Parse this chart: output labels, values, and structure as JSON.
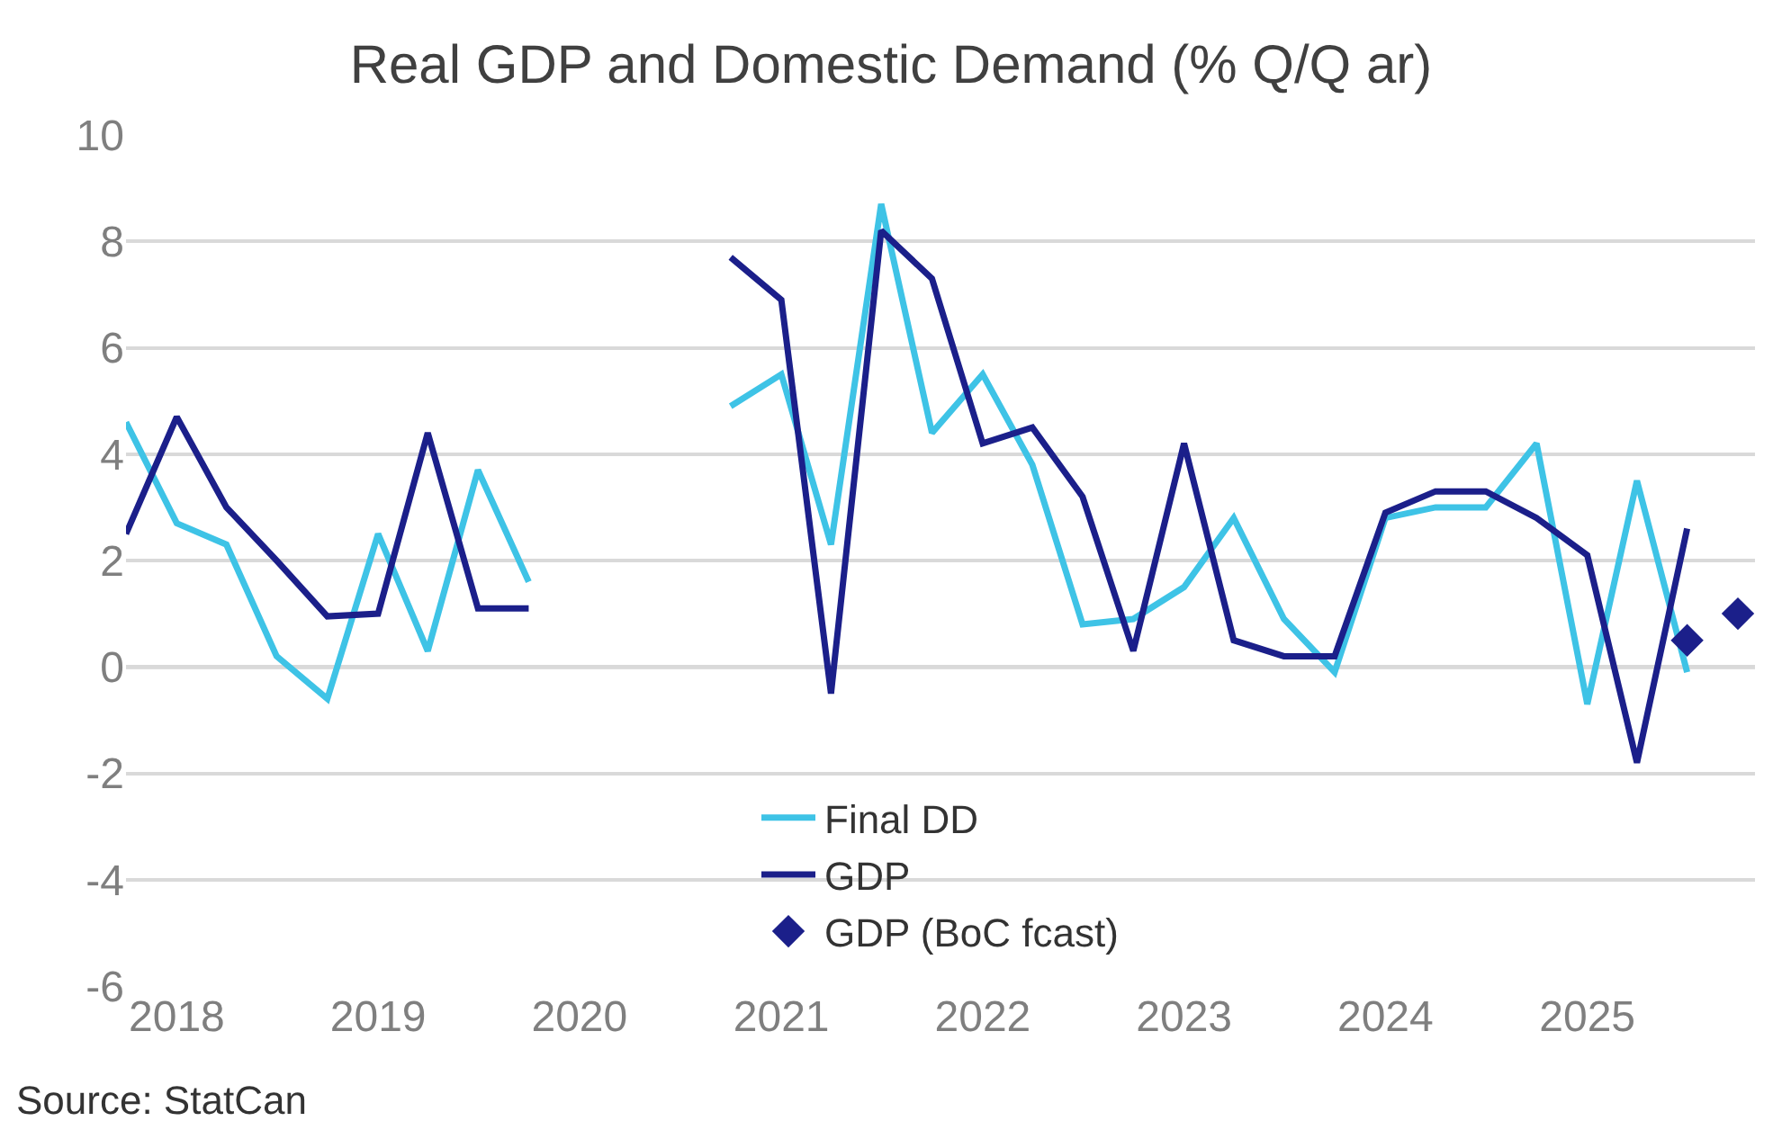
{
  "chart_data": {
    "type": "line",
    "title": "Real GDP and Domestic Demand (% Q/Q ar)",
    "x": [
      "2017-10",
      "2018-01",
      "2018-04",
      "2018-07",
      "2018-10",
      "2019-01",
      "2019-04",
      "2019-07",
      "2019-10",
      "2020-01",
      "2020-04",
      "2020-07",
      "2020-10",
      "2021-01",
      "2021-04",
      "2021-07",
      "2021-10",
      "2022-01",
      "2022-04",
      "2022-07",
      "2022-10",
      "2023-01",
      "2023-04",
      "2023-07",
      "2023-10",
      "2024-01",
      "2024-04",
      "2024-07",
      "2024-10",
      "2025-01",
      "2025-04",
      "2025-07"
    ],
    "series": [
      {
        "name": "Final DD",
        "color": "#3ec3e6",
        "values": [
          4.6,
          2.7,
          2.3,
          0.2,
          -0.6,
          2.5,
          0.3,
          3.7,
          1.6,
          null,
          null,
          null,
          4.9,
          5.5,
          2.3,
          8.7,
          4.4,
          5.5,
          3.8,
          0.8,
          0.9,
          1.5,
          2.8,
          0.9,
          -0.1,
          2.8,
          3.0,
          3.0,
          4.2,
          -0.7,
          3.5,
          -0.1
        ]
      },
      {
        "name": "GDP",
        "color": "#1b1f8a",
        "values": [
          2.5,
          4.7,
          3.0,
          2.0,
          0.95,
          1.0,
          4.4,
          1.1,
          1.1,
          null,
          null,
          null,
          7.7,
          6.9,
          -0.5,
          8.2,
          7.3,
          4.2,
          4.5,
          3.2,
          0.3,
          4.2,
          0.5,
          0.2,
          0.2,
          2.9,
          3.3,
          3.3,
          2.8,
          2.1,
          -1.8,
          2.6
        ]
      },
      {
        "name": "GDP (BoC fcast)",
        "type": "scatter",
        "marker": "diamond",
        "color": "#1b1f8a",
        "x": [
          "2025-07",
          "2025-10"
        ],
        "values": [
          0.5,
          1.0
        ]
      }
    ],
    "xlim": [
      "2017-10",
      "2025-11"
    ],
    "xticks": [
      "2018",
      "2019",
      "2020",
      "2021",
      "2022",
      "2023",
      "2024",
      "2025"
    ],
    "ylim": [
      -6,
      10
    ],
    "yticks": [
      -6,
      -4,
      -2,
      0,
      2,
      4,
      6,
      8,
      10
    ],
    "grid": "y",
    "legend": "bottom",
    "ref_lines": [
      {
        "axis": "y",
        "value": 0,
        "color": "#7f7f7f"
      }
    ],
    "annotations": [
      "Source: StatCan"
    ]
  }
}
